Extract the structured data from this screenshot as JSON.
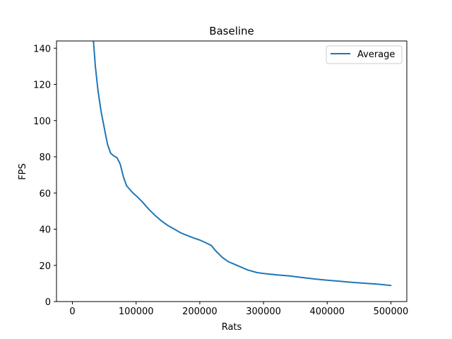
{
  "chart_data": {
    "type": "line",
    "title": "Baseline",
    "xlabel": "Rats",
    "ylabel": "FPS",
    "xlim": [
      -25000,
      525000
    ],
    "ylim": [
      0,
      144
    ],
    "xticks": [
      0,
      100000,
      200000,
      300000,
      400000,
      500000
    ],
    "xtick_labels": [
      "0",
      "100000",
      "200000",
      "300000",
      "400000",
      "500000"
    ],
    "yticks": [
      0,
      20,
      40,
      60,
      80,
      100,
      120,
      140
    ],
    "ytick_labels": [
      "0",
      "20",
      "40",
      "60",
      "80",
      "100",
      "120",
      "140"
    ],
    "grid": false,
    "legend": {
      "position": "upper right"
    },
    "series": [
      {
        "name": "Average",
        "color": "#1f77b4",
        "x": [
          33000,
          36000,
          40000,
          45000,
          50000,
          55000,
          60000,
          65000,
          70000,
          75000,
          80000,
          85000,
          90000,
          95000,
          100000,
          110000,
          120000,
          130000,
          140000,
          150000,
          160000,
          170000,
          180000,
          190000,
          200000,
          210000,
          218000,
          225000,
          235000,
          245000,
          255000,
          265000,
          275000,
          290000,
          300000,
          320000,
          340000,
          360000,
          380000,
          400000,
          420000,
          440000,
          460000,
          480000,
          500000
        ],
        "y": [
          144,
          130,
          117,
          105,
          96,
          87,
          82,
          80.5,
          79.5,
          76,
          69,
          64,
          62,
          60,
          58.5,
          55,
          51,
          47.5,
          44.5,
          42,
          40,
          38,
          36.5,
          35.2,
          34,
          32.4,
          31,
          28,
          24.5,
          22,
          20.5,
          19,
          17.5,
          16,
          15.5,
          14.8,
          14.2,
          13.3,
          12.5,
          11.8,
          11.2,
          10.6,
          10.1,
          9.6,
          8.9
        ]
      }
    ]
  }
}
